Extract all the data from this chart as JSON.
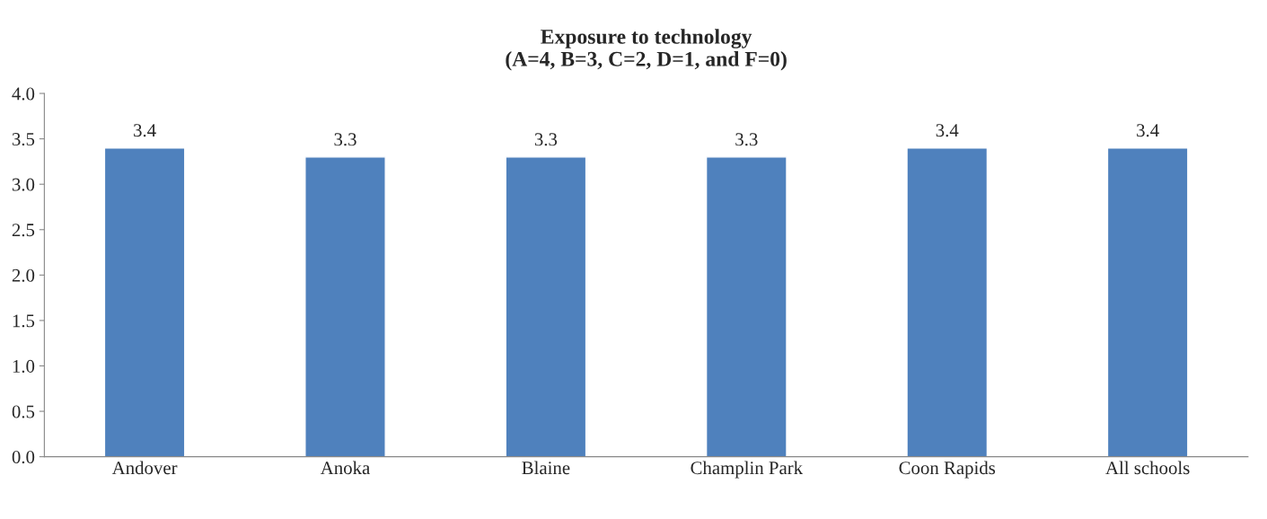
{
  "chart_data": {
    "type": "bar",
    "title": "Exposure to technology\n(A=4, B=3, C=2, D=1, and F=0)",
    "categories": [
      "Andover",
      "Anoka",
      "Blaine",
      "Champlin Park",
      "Coon Rapids",
      "All schools"
    ],
    "values": [
      3.4,
      3.3,
      3.3,
      3.3,
      3.4,
      3.4
    ],
    "color": "#4f81bd",
    "data_labels": true,
    "ylim": [
      0,
      4
    ],
    "yticks": [
      {
        "value": 0,
        "label": "0.0"
      },
      {
        "value": 0.5,
        "label": "0.5"
      },
      {
        "value": 1,
        "label": "1.0"
      },
      {
        "value": 1.5,
        "label": "1.5"
      },
      {
        "value": 2,
        "label": "2.0"
      },
      {
        "value": 2.5,
        "label": "2.5"
      },
      {
        "value": 3,
        "label": "3.0"
      },
      {
        "value": 3.5,
        "label": "3.5"
      },
      {
        "value": 4,
        "label": "4.0"
      }
    ],
    "grid": false,
    "legend": false
  }
}
